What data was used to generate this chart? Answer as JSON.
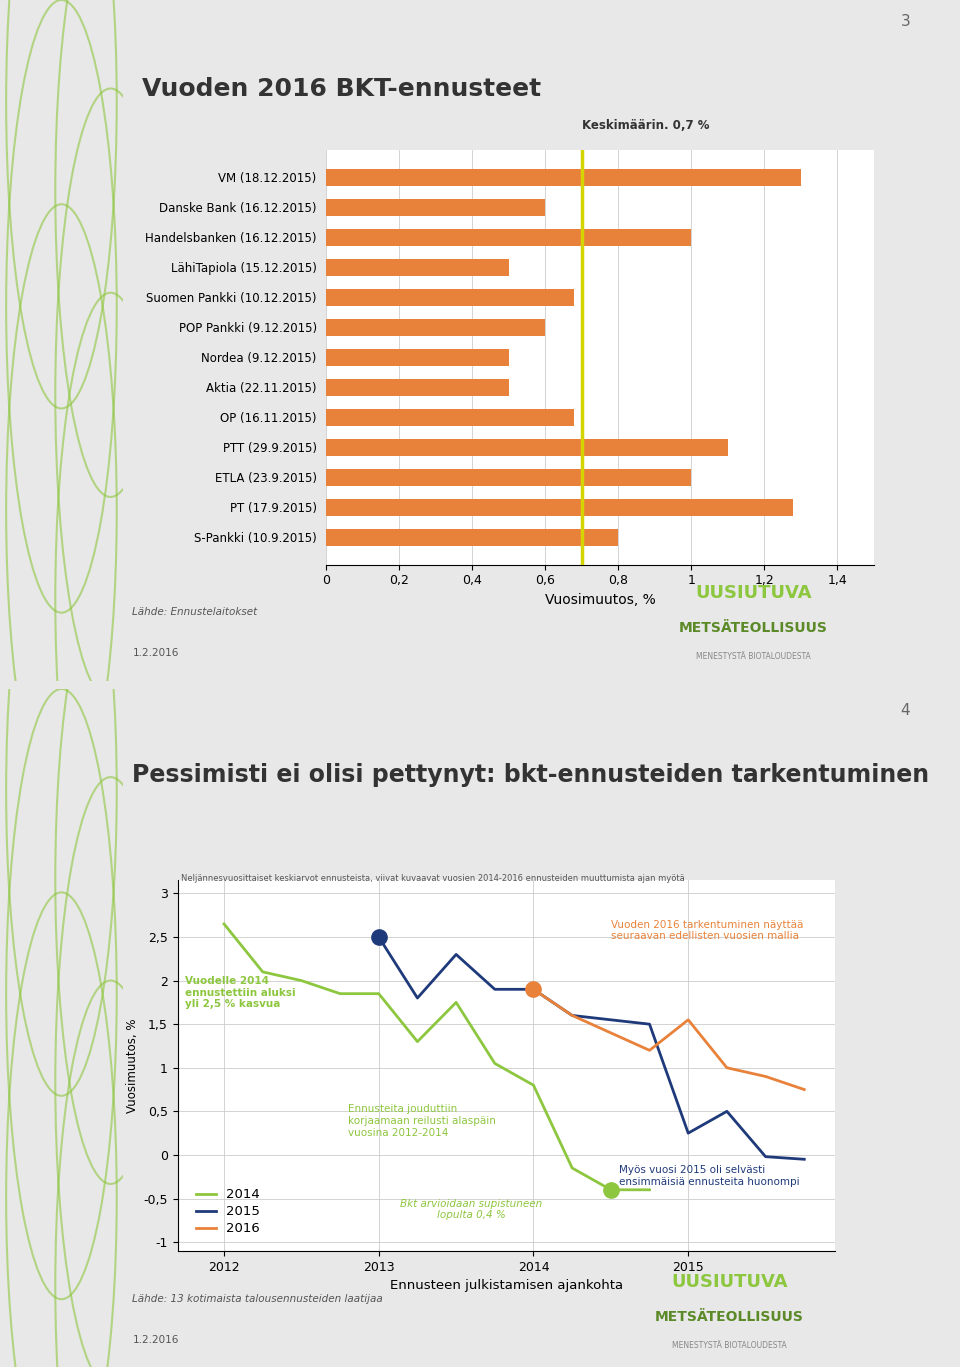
{
  "chart1": {
    "title": "Vuoden 2016 BKT-ennusteet",
    "xlabel": "Vuosimuutos, %",
    "page_num": "3",
    "mean_label": "Keskimäärin. 0,7 %",
    "mean_value": 0.7,
    "categories": [
      "VM (18.12.2015)",
      "Danske Bank (16.12.2015)",
      "Handelsbanken (16.12.2015)",
      "LähiTapiola (15.12.2015)",
      "Suomen Pankki (10.12.2015)",
      "POP Pankki (9.12.2015)",
      "Nordea (9.12.2015)",
      "Aktia (22.11.2015)",
      "OP (16.11.2015)",
      "PTT (29.9.2015)",
      "ETLA (23.9.2015)",
      "PT (17.9.2015)",
      "S-Pankki (10.9.2015)"
    ],
    "values": [
      1.3,
      0.6,
      1.0,
      0.5,
      0.68,
      0.6,
      0.5,
      0.5,
      0.68,
      1.1,
      1.0,
      1.28,
      0.8
    ],
    "bar_color": "#E8823A",
    "xticks": [
      0,
      0.2,
      0.4,
      0.6,
      0.8,
      1.0,
      1.2,
      1.4
    ],
    "source_text": "Lähde: Ennustelaitokset",
    "date_text": "1.2.2016",
    "logo1": "UUSIUTUVA",
    "logo2": "METSÄTEOLLISUUS",
    "logo3": "MENESTYSTÄ BIOTALOUDESTA"
  },
  "chart2": {
    "title": "Pessimisti ei olisi pettynyt: bkt-ennusteiden tarkentuminen",
    "page_num": "4",
    "subtitle": "Neljännesvuosittaiset keskiarvot ennusteista, viivat kuvaavat vuosien 2014-2016 ennusteiden muuttumista ajan myötä",
    "xlabel": "Ennusteen julkistamisen ajankohta",
    "ylabel": "Vuosimuutos, %",
    "ylim": [
      -1.0,
      3.0
    ],
    "yticks": [
      -1,
      -0.5,
      0,
      0.5,
      1,
      1.5,
      2,
      2.5,
      3
    ],
    "ytick_labels": [
      "-1",
      "-0,5",
      "0",
      "0,5",
      "1",
      "1,5",
      "2",
      "2,5",
      "3"
    ],
    "line2014_x": [
      2012.0,
      2012.25,
      2012.5,
      2012.75,
      2013.0,
      2013.25,
      2013.5,
      2013.75,
      2014.0,
      2014.25,
      2014.5,
      2014.75
    ],
    "line2014_y": [
      2.65,
      2.1,
      2.0,
      1.85,
      1.85,
      1.3,
      1.75,
      1.05,
      0.8,
      -0.15,
      -0.4,
      -0.4
    ],
    "line2015_x": [
      2013.0,
      2013.25,
      2013.5,
      2013.75,
      2014.0,
      2014.25,
      2014.5,
      2014.75,
      2015.0,
      2015.25,
      2015.5,
      2015.75
    ],
    "line2015_y": [
      2.5,
      1.8,
      2.3,
      1.9,
      1.9,
      1.6,
      1.55,
      1.5,
      0.25,
      0.5,
      -0.02,
      -0.05
    ],
    "line2016_x": [
      2014.0,
      2014.25,
      2014.75,
      2015.0,
      2015.25,
      2015.5,
      2015.75
    ],
    "line2016_y": [
      1.9,
      1.6,
      1.2,
      1.55,
      1.0,
      0.9,
      0.75
    ],
    "color2014": "#8DC63F",
    "color2015": "#1F3A7A",
    "color2016": "#E8823A",
    "marker2014_x": 2014.5,
    "marker2014_y": -0.4,
    "marker2015_x": 2013.0,
    "marker2015_y": 2.5,
    "marker2016_x": 2014.0,
    "marker2016_y": 1.9,
    "annotation1_text": "Vuodelle 2014\nennustettiin aluksi\nyli 2,5 % kasvua",
    "annotation1_color": "#8DC63F",
    "annotation2_text": "Ennusteita jouduttiin\nkorjaamaan reilusti alaspäin\nvuosina 2012-2014",
    "annotation2_color": "#8DC63F",
    "annotation3_text": "Vuoden 2016 tarkentuminen näyttää\nseuraavan edellisten vuosien mallia",
    "annotation3_color": "#E8823A",
    "annotation4_text": "Myös vuosi 2015 oli selvästi\nensimmäisiä ennusteita huonompi",
    "annotation4_color": "#1F3A7A",
    "annotation5_text": "Bkt arvioidaan supistuneen\nlopulta 0,4 %",
    "annotation5_color": "#8DC63F",
    "source_text": "Lähde: 13 kotimaista talousennusteiden laatijaa",
    "date_text": "1.2.2016",
    "legend_labels": [
      "2014",
      "2015",
      "2016"
    ],
    "xtick_positions": [
      2012,
      2013,
      2014,
      2015
    ],
    "xtick_labels": [
      "2012",
      "2013",
      "2014",
      "2015"
    ],
    "logo1": "UUSIUTUVA",
    "logo2": "METSÄTEOLLISUUS",
    "logo3": "MENESTYSTÄ BIOTALOUDESTA"
  },
  "overall_bg": "#E8E8E8",
  "slide_bg": "#FFFFFF",
  "green_strip_color": "#D6E8B0",
  "blue_bar_color": "#29ABE2",
  "separator_color": "#BBBBBB",
  "logo_color1": "#8DC63F",
  "logo_color2": "#5C8A28"
}
